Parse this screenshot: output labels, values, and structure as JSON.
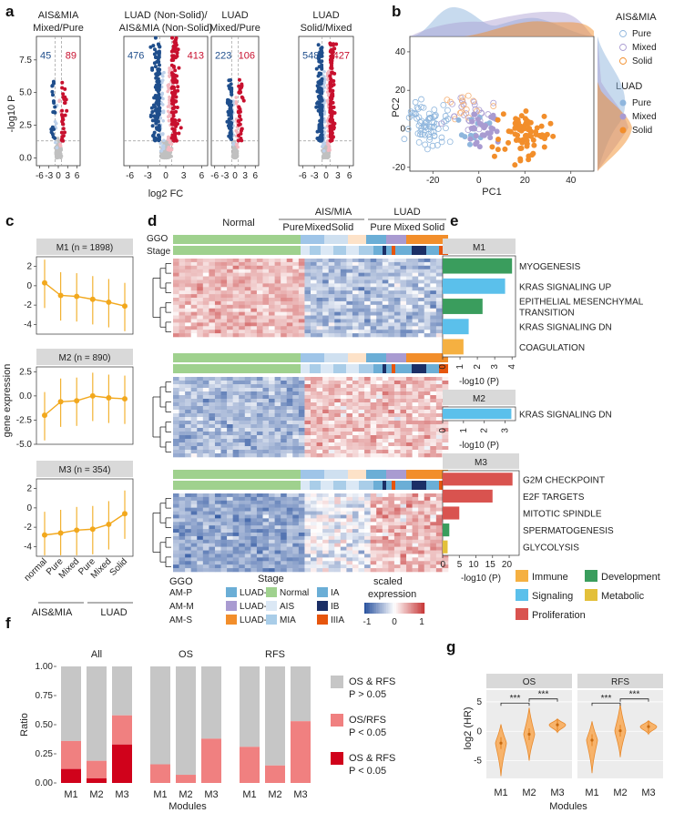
{
  "panel_labels": [
    "a",
    "b",
    "c",
    "d",
    "e",
    "f",
    "g"
  ],
  "colors": {
    "up": "#c8102e",
    "down": "#1f4e8c",
    "ns": "#c0c0c0",
    "orange": "#f28e2b",
    "pure": "#8fb6dd",
    "mixed": "#a99bd1",
    "solid": "#f28e2b",
    "normal": "#9fd18e",
    "ais": "#dbe8f5",
    "mia": "#a9cde8",
    "ia": "#6baed6",
    "ib": "#1b2f66",
    "iiia": "#e6550d",
    "immune": "#f5b041",
    "signaling": "#5bc0eb",
    "proliferation": "#d9534f",
    "development": "#3a9d5d",
    "metabolic": "#e3c03a",
    "sig_dark": "#d0021b",
    "sig_light": "#f08080",
    "nonsig": "#c6c6c6"
  },
  "chart_data": [
    {
      "type": "scatter",
      "panel": "a",
      "ylabel": "-log10 P",
      "xlabel": "log2 FC",
      "xticks": [
        "-6",
        "-3",
        "0",
        "3",
        "6"
      ],
      "yticks": [
        "0.0",
        "2.5",
        "5.0",
        "7.5"
      ],
      "subplots": [
        {
          "title": "AIS&MIA Mixed/Pure",
          "down": "45",
          "up": "89"
        },
        {
          "title": "LUAD (Non-Solid)/ AIS&MIA (Non-Solid)",
          "down": "476",
          "up": "413"
        },
        {
          "title": "LUAD Mixed/Pure",
          "down": "223",
          "up": "106"
        },
        {
          "title": "LUAD Solid/Mixed",
          "down": "548",
          "up": "427"
        }
      ]
    },
    {
      "type": "scatter",
      "panel": "b",
      "xlabel": "PC1",
      "ylabel": "PC2",
      "xticks": [
        "-20",
        "0",
        "20",
        "40"
      ],
      "yticks": [
        "-20",
        "0",
        "20",
        "40"
      ],
      "legend": {
        "group1": "AIS&MIA",
        "group2": "LUAD",
        "items": [
          "Pure",
          "Mixed",
          "Solid"
        ]
      }
    },
    {
      "type": "line",
      "panel": "c",
      "ylabel": "gene expression",
      "categories": [
        "normal",
        "Pure",
        "Mixed",
        "Pure",
        "Mixed",
        "Solid"
      ],
      "group_labels": [
        "AIS&MIA",
        "LUAD"
      ],
      "series": [
        {
          "name": "M1 (n = 1898)",
          "values": [
            0.3,
            -1.0,
            -1.1,
            -1.4,
            -1.7,
            -2.1
          ],
          "ylim": [
            -5,
            3
          ],
          "yticks": [
            "2",
            "0",
            "-2",
            "-4"
          ]
        },
        {
          "name": "M2 (n = 890)",
          "values": [
            -2.0,
            -0.6,
            -0.5,
            0.0,
            -0.2,
            -0.3
          ],
          "ylim": [
            -5,
            3
          ],
          "yticks": [
            "2.5",
            "0.0",
            "-2.5",
            "-5.0"
          ]
        },
        {
          "name": "M3 (n = 354)",
          "values": [
            -2.8,
            -2.6,
            -2.3,
            -2.2,
            -1.7,
            -0.6
          ],
          "ylim": [
            -5,
            3
          ],
          "yticks": [
            "2",
            "0",
            "-2",
            "-4"
          ]
        }
      ]
    },
    {
      "type": "heatmap",
      "panel": "d",
      "groups": [
        "Normal",
        "AIS/MIA",
        "LUAD"
      ],
      "subgroups": [
        "Pure",
        "Mixed",
        "Solid",
        "Pure",
        "Mixed",
        "Solid"
      ],
      "row_labels": [
        "GGO",
        "Stage"
      ],
      "legend": {
        "ggo_title": "GGO",
        "ggo": [
          "AM-P",
          "AM-M",
          "AM-S",
          "LUAD-P",
          "LUAD-M",
          "LUAD-S"
        ],
        "stage_title": "Stage",
        "stage": [
          "Normal",
          "AIS",
          "MIA",
          "IA",
          "IB",
          "IIIA"
        ],
        "scale_title": "scaled expression",
        "scale_ticks": [
          "-1",
          "0",
          "1"
        ]
      }
    },
    {
      "type": "bar",
      "panel": "e",
      "xlabel": "-log10 (P)",
      "modules": [
        {
          "name": "M1",
          "xticks": [
            "0",
            "1",
            "2",
            "3",
            "4"
          ],
          "terms": [
            {
              "label": "MYOGENESIS",
              "value": 4.0,
              "cat": "development"
            },
            {
              "label": "KRAS SIGNALING UP",
              "value": 3.6,
              "cat": "signaling"
            },
            {
              "label": "EPITHELIAL MESENCHYMAL TRANSITION",
              "value": 2.3,
              "cat": "development"
            },
            {
              "label": "KRAS SIGNALING DN",
              "value": 1.5,
              "cat": "signaling"
            },
            {
              "label": "COAGULATION",
              "value": 1.2,
              "cat": "immune"
            }
          ]
        },
        {
          "name": "M2",
          "xticks": [
            "0",
            "1",
            "2",
            "3"
          ],
          "terms": [
            {
              "label": "KRAS SIGNALING DN",
              "value": 3.3,
              "cat": "signaling"
            }
          ]
        },
        {
          "name": "M3",
          "xticks": [
            "0",
            "5",
            "10",
            "15",
            "20"
          ],
          "terms": [
            {
              "label": "G2M CHECKPOINT",
              "value": 21,
              "cat": "proliferation"
            },
            {
              "label": "E2F TARGETS",
              "value": 15,
              "cat": "proliferation"
            },
            {
              "label": "MITOTIC SPINDLE",
              "value": 5,
              "cat": "proliferation"
            },
            {
              "label": "SPERMATOGENESIS",
              "value": 2,
              "cat": "development"
            },
            {
              "label": "GLYCOLYSIS",
              "value": 1.5,
              "cat": "metabolic"
            }
          ]
        }
      ],
      "legend": [
        "Immune",
        "Signaling",
        "Proliferation",
        "Development",
        "Metabolic"
      ]
    },
    {
      "type": "bar",
      "panel": "f",
      "xlabel": "Modules",
      "ylabel": "Ratio",
      "yticks": [
        "0.00",
        "0.25",
        "0.50",
        "0.75",
        "1.00"
      ],
      "categories": [
        "M1",
        "M2",
        "M3"
      ],
      "facets": [
        {
          "name": "All",
          "both": [
            0.12,
            0.04,
            0.33
          ],
          "either": [
            0.36,
            0.19,
            0.58
          ]
        },
        {
          "name": "OS",
          "both": [
            0,
            0,
            0
          ],
          "either": [
            0.16,
            0.07,
            0.38
          ]
        },
        {
          "name": "RFS",
          "both": [
            0,
            0,
            0
          ],
          "either": [
            0.31,
            0.15,
            0.53
          ]
        }
      ],
      "legend": [
        {
          "line1": "OS & RFS",
          "line2": "P > 0.05"
        },
        {
          "line1": "OS/RFS",
          "line2": "P < 0.05"
        },
        {
          "line1": "OS & RFS",
          "line2": "P < 0.05"
        }
      ]
    },
    {
      "type": "violin",
      "panel": "g",
      "xlabel": "Modules",
      "ylabel": "log2 (HR)",
      "yticks": [
        "5",
        "0",
        "-5"
      ],
      "categories": [
        "M1",
        "M2",
        "M3"
      ],
      "facets": [
        "OS",
        "RFS"
      ],
      "sig": "***",
      "medians": {
        "OS": [
          -2.0,
          -0.5,
          1.1
        ],
        "RFS": [
          -1.5,
          0.1,
          0.8
        ]
      }
    }
  ]
}
